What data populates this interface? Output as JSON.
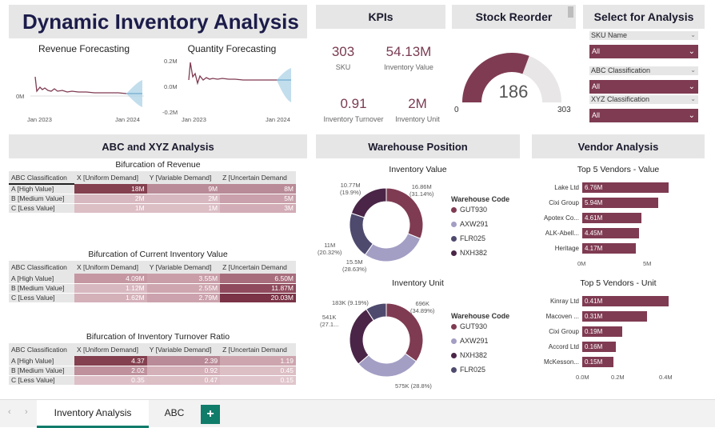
{
  "header": {
    "title": "Dynamic Inventory Analysis"
  },
  "kpis": {
    "title": "KPIs",
    "items": [
      {
        "value": "303",
        "label": "SKU"
      },
      {
        "value": "54.13M",
        "label": "Inventory Value"
      },
      {
        "value": "0.91",
        "label": "Inventory Turnover"
      },
      {
        "value": "2M",
        "label": "Inventory Unit"
      }
    ]
  },
  "stock_reorder": {
    "title": "Stock Reorder",
    "value": "186",
    "min": "0",
    "max": "303",
    "fill_fraction": 0.614
  },
  "slicers": {
    "title": "Select for Analysis",
    "items": [
      {
        "label": "SKU Name",
        "value": "All"
      },
      {
        "label": "ABC Classification",
        "value": "All"
      },
      {
        "label": "XYZ Classification",
        "value": "All"
      }
    ]
  },
  "forecast": {
    "revenue": {
      "title": "Revenue Forecasting",
      "y_ticks": [
        "0M"
      ],
      "x_ticks": [
        "Jan 2023",
        "Jan 2024"
      ]
    },
    "quantity": {
      "title": "Quantity Forecasting",
      "y_ticks": [
        "0.2M",
        "0.0M",
        "-0.2M"
      ],
      "x_ticks": [
        "Jan 2023",
        "Jan 2024"
      ]
    }
  },
  "abc": {
    "title": "ABC and XYZ Analysis",
    "columns": [
      "ABC Classification",
      "X [Uniform Demand]",
      "Y [Variable Demand]",
      "Z [Uncertain Demand"
    ],
    "tables": [
      {
        "title": "Bifurcation of Revenue",
        "rows": [
          {
            "label": "A [High Value]",
            "cells": [
              "18M",
              "9M",
              "8M"
            ],
            "shades": [
              "#84404f",
              "#b98a97",
              "#b98a97"
            ]
          },
          {
            "label": "B [Medium Value]",
            "cells": [
              "2M",
              "2M",
              "5M"
            ],
            "shades": [
              "#d8b8c0",
              "#d8b8c0",
              "#c9a0ab"
            ]
          },
          {
            "label": "C [Less Value]",
            "cells": [
              "1M",
              "1M",
              "3M"
            ],
            "shades": [
              "#dcbec5",
              "#dcbec5",
              "#d2acb6"
            ]
          }
        ]
      },
      {
        "title": "Bifurcation of Current Inventory Value",
        "rows": [
          {
            "label": "A [High Value]",
            "cells": [
              "4.09M",
              "3.55M",
              "6.50M"
            ],
            "shades": [
              "#c597a3",
              "#c99ea9",
              "#a76d7d"
            ]
          },
          {
            "label": "B [Medium Value]",
            "cells": [
              "1.12M",
              "2.55M",
              "11.87M"
            ],
            "shades": [
              "#d8b8c0",
              "#cea6b0",
              "#8f4a5d"
            ]
          },
          {
            "label": "C [Less Value]",
            "cells": [
              "1.62M",
              "2.79M",
              "20.03M"
            ],
            "shades": [
              "#d4b0b9",
              "#cba2ad",
              "#7a3347"
            ]
          }
        ]
      },
      {
        "title": "Bifurcation of Inventory Turnover Ratio",
        "rows": [
          {
            "label": "A [High Value]",
            "cells": [
              "4.37",
              "2.39",
              "1.19"
            ],
            "shades": [
              "#84404f",
              "#b98a97",
              "#cda5af"
            ]
          },
          {
            "label": "B [Medium Value]",
            "cells": [
              "2.02",
              "0.92",
              "0.45"
            ],
            "shades": [
              "#be919d",
              "#d4b0b9",
              "#dcbec5"
            ]
          },
          {
            "label": "C [Less Value]",
            "cells": [
              "0.35",
              "0.47",
              "0.15"
            ],
            "shades": [
              "#ddc0c7",
              "#dcbec5",
              "#e0c6cc"
            ]
          }
        ]
      }
    ]
  },
  "warehouse": {
    "title": "Warehouse Position",
    "legend_title": "Warehouse Code",
    "value_chart": {
      "title": "Inventory Value",
      "legend": [
        "GUT930",
        "AXW291",
        "FLR025",
        "NXH382"
      ],
      "labels": [
        {
          "text": "16.86M",
          "sub": "(31.14%)"
        },
        {
          "text": "15.5M",
          "sub": "(28.63%)"
        },
        {
          "text": "11M",
          "sub": "(20.32%)"
        },
        {
          "text": "10.77M",
          "sub": "(19.9%)"
        }
      ]
    },
    "unit_chart": {
      "title": "Inventory Unit",
      "legend": [
        "GUT930",
        "AXW291",
        "NXH382",
        "FLR025"
      ],
      "labels": [
        {
          "text": "696K",
          "sub": "(34.89%)"
        },
        {
          "text": "575K (28.8%)",
          "sub": ""
        },
        {
          "text": "541K",
          "sub": "(27.1..."
        },
        {
          "text": "183K (9.19%)",
          "sub": ""
        }
      ]
    },
    "colors": {
      "GUT930": "#7f3b52",
      "AXW291": "#a39ec4",
      "FLR025": "#4e4a6e",
      "NXH382": "#4a2547"
    }
  },
  "chart_data": [
    {
      "type": "pie",
      "title": "Inventory Value",
      "categories": [
        "GUT930",
        "AXW291",
        "FLR025",
        "NXH382"
      ],
      "values": [
        16.86,
        15.5,
        11,
        10.77
      ],
      "percent": [
        31.14,
        28.63,
        20.32,
        19.9
      ],
      "legend": "right"
    },
    {
      "type": "pie",
      "title": "Inventory Unit",
      "categories": [
        "GUT930",
        "AXW291",
        "NXH382",
        "FLR025"
      ],
      "values": [
        696,
        575,
        541,
        183
      ],
      "percent": [
        34.89,
        28.8,
        27.1,
        9.19
      ],
      "legend": "right"
    },
    {
      "type": "bar",
      "title": "Top 5 Vendors - Value",
      "categories": [
        "Lake Ltd",
        "Cixi Group",
        "Apotex Co...",
        "ALK-Abell...",
        "Heritage"
      ],
      "values": [
        6.76,
        5.94,
        4.61,
        4.45,
        4.17
      ],
      "labels": [
        "6.76M",
        "5.94M",
        "4.61M",
        "4.45M",
        "4.17M"
      ],
      "x_ticks": [
        "0M",
        "5M"
      ],
      "xlim": [
        0,
        8.5
      ]
    },
    {
      "type": "bar",
      "title": "Top 5 Vendors - Unit",
      "categories": [
        "Kinray Ltd",
        "Macoven ...",
        "Cixi Group",
        "Accord Ltd",
        "McKesson..."
      ],
      "values": [
        0.41,
        0.31,
        0.19,
        0.16,
        0.15
      ],
      "labels": [
        "0.41M",
        "0.31M",
        "0.19M",
        "0.16M",
        "0.15M"
      ],
      "x_ticks": [
        "0.0M",
        "0.2M",
        "0.4M"
      ],
      "xlim": [
        0,
        0.45
      ]
    }
  ],
  "vendor": {
    "title": "Vendor Analysis"
  },
  "tabs": {
    "items": [
      "Inventory Analysis",
      "ABC"
    ],
    "add": "+"
  }
}
